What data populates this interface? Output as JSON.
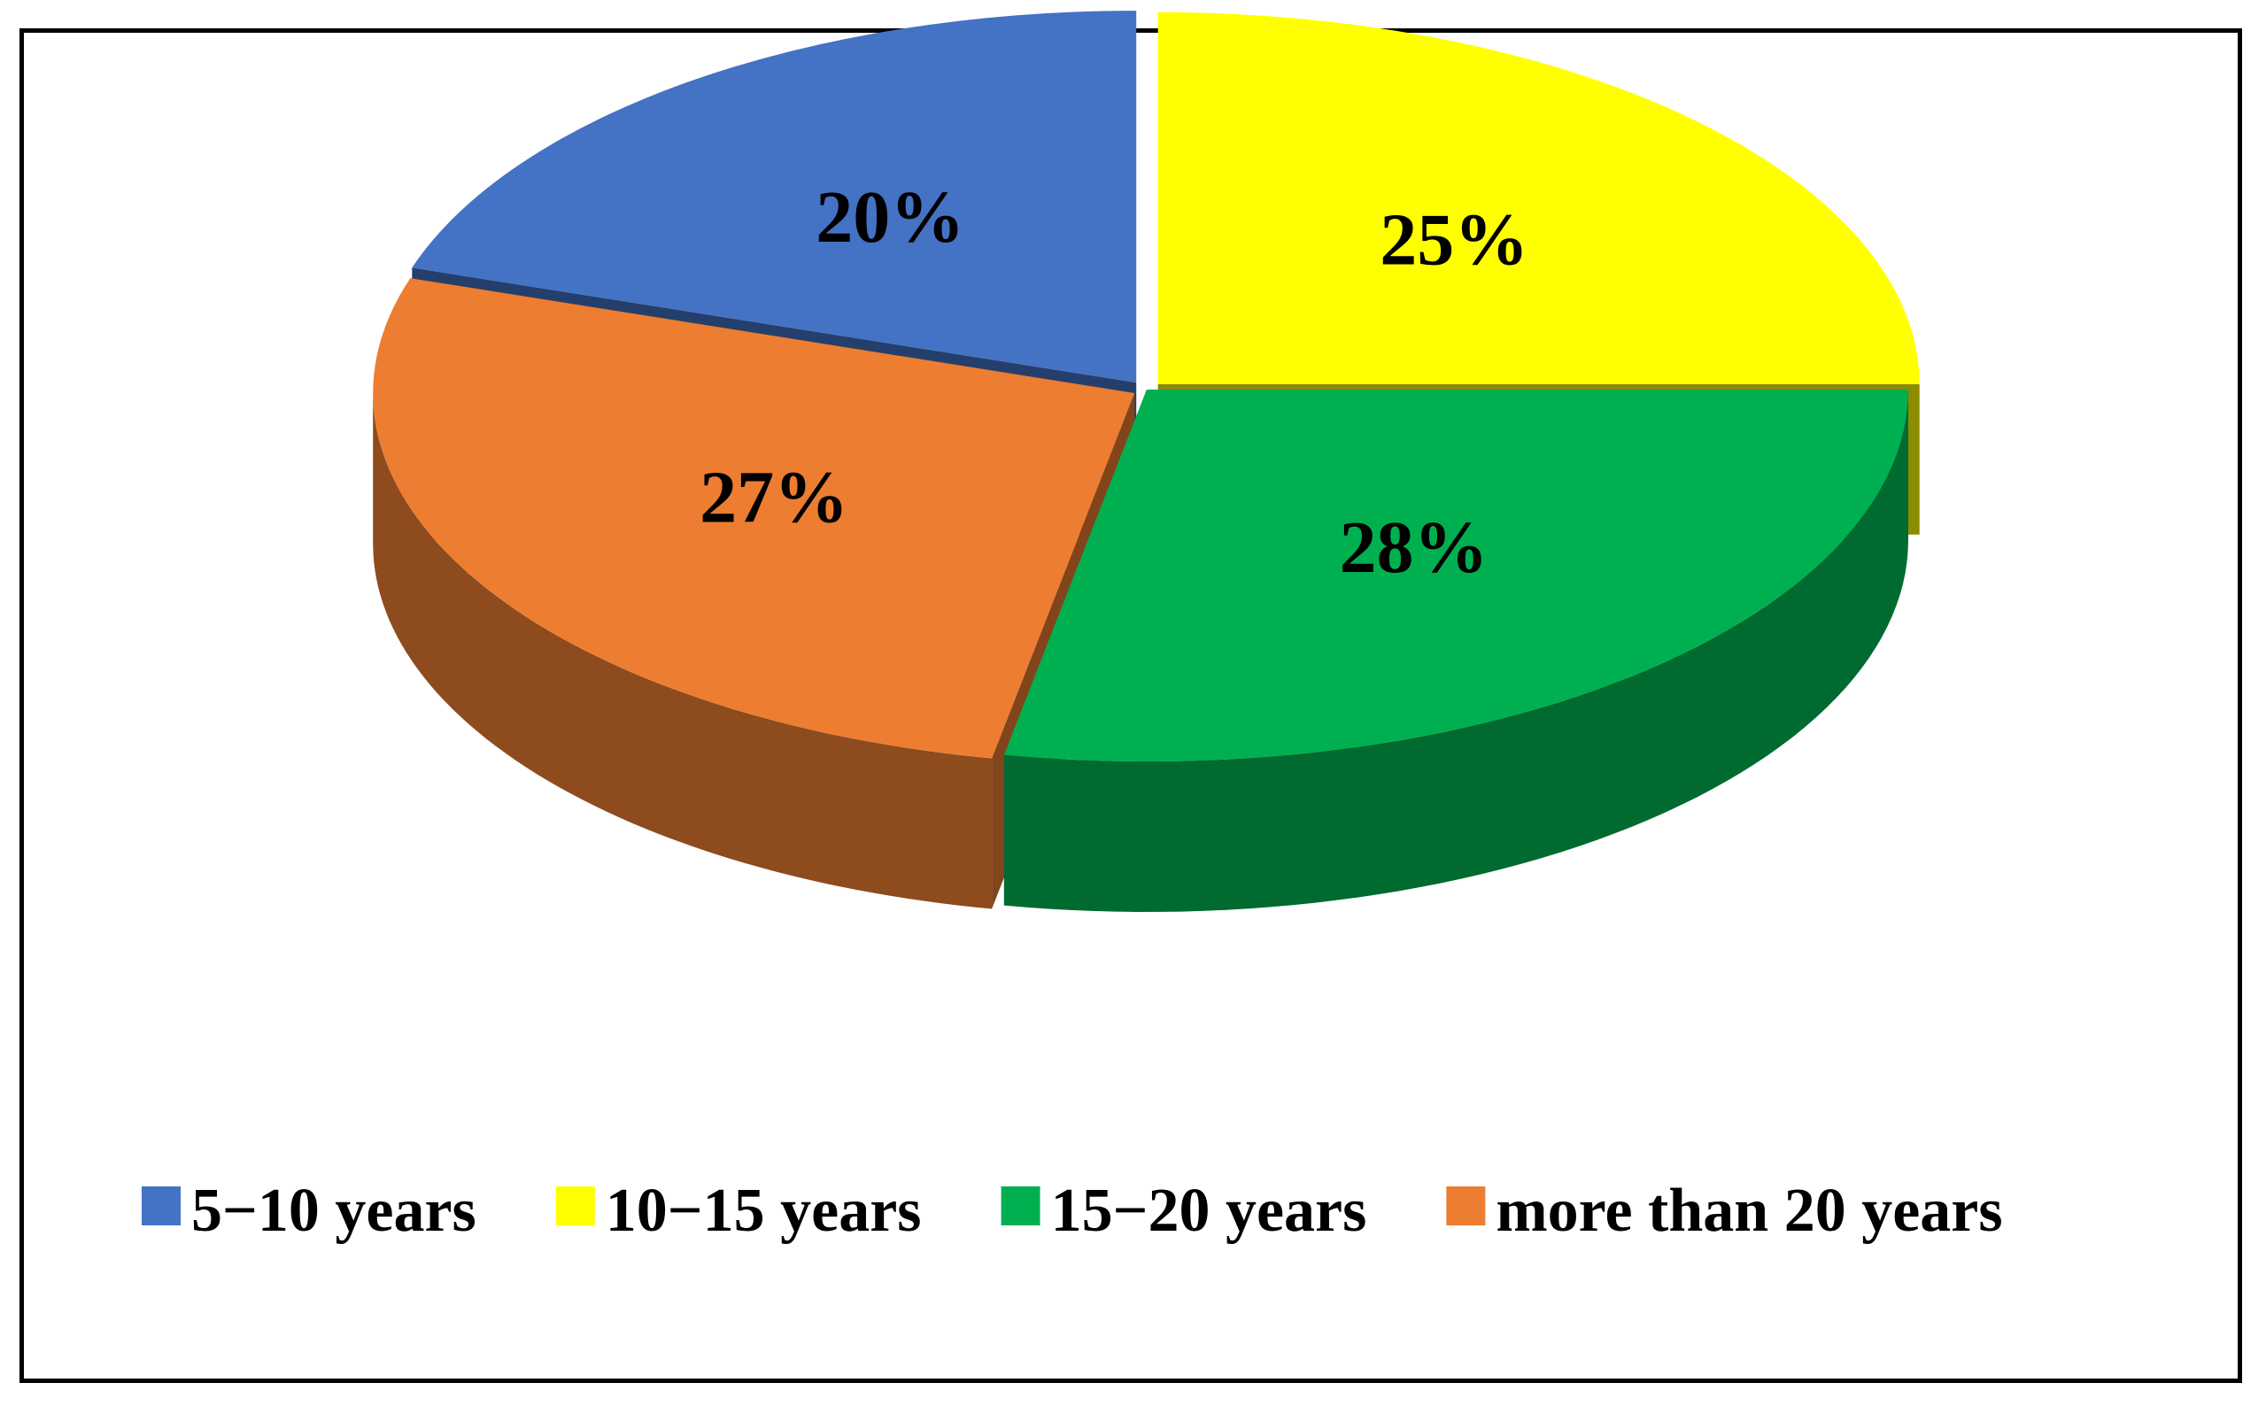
{
  "chart_data": {
    "type": "pie",
    "style": "3d-exploded",
    "title": "",
    "slices": [
      {
        "label": "5−10 years",
        "value": 20,
        "display": "20%",
        "color": "#4472C4"
      },
      {
        "label": "10−15 years",
        "value": 25,
        "display": "25%",
        "color": "#FFFF00"
      },
      {
        "label": "15−20 years",
        "value": 28,
        "display": "28%",
        "color": "#00B050"
      },
      {
        "label": "more than 20 years",
        "value": 27,
        "display": "27%",
        "color": "#ED7D31"
      }
    ],
    "legend_position": "bottom"
  }
}
